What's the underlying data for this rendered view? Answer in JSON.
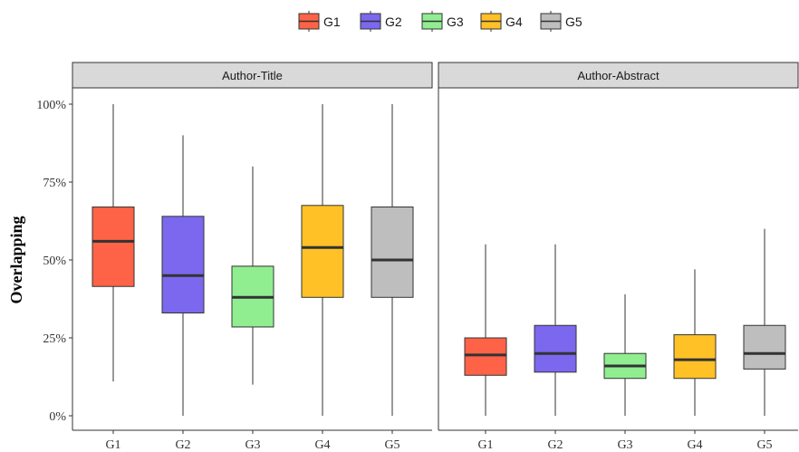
{
  "chart_data": {
    "type": "boxplot",
    "ylabel": "Overlapping",
    "xlabel": "",
    "ylim": [
      0,
      1
    ],
    "y_ticks": [
      "0%",
      "25%",
      "50%",
      "75%",
      "100%"
    ],
    "y_tick_values": [
      0,
      0.25,
      0.5,
      0.75,
      1.0
    ],
    "categories": [
      "G1",
      "G2",
      "G3",
      "G4",
      "G5"
    ],
    "colors": {
      "G1": "#FF6347",
      "G2": "#7B68EE",
      "G3": "#90EE90",
      "G4": "#FFC125",
      "G5": "#BEBEBE"
    },
    "legend": {
      "position": "top",
      "entries": [
        "G1",
        "G2",
        "G3",
        "G4",
        "G5"
      ]
    },
    "grid": false,
    "facets": [
      {
        "name": "Author-Title",
        "boxes": [
          {
            "group": "G1",
            "min": 0.11,
            "q1": 0.415,
            "median": 0.56,
            "q3": 0.67,
            "max": 1.0
          },
          {
            "group": "G2",
            "min": 0.0,
            "q1": 0.33,
            "median": 0.45,
            "q3": 0.64,
            "max": 0.9
          },
          {
            "group": "G3",
            "min": 0.1,
            "q1": 0.285,
            "median": 0.38,
            "q3": 0.48,
            "max": 0.8
          },
          {
            "group": "G4",
            "min": 0.0,
            "q1": 0.38,
            "median": 0.54,
            "q3": 0.675,
            "max": 1.0
          },
          {
            "group": "G5",
            "min": 0.0,
            "q1": 0.38,
            "median": 0.5,
            "q3": 0.67,
            "max": 1.0
          }
        ]
      },
      {
        "name": "Author-Abstract",
        "boxes": [
          {
            "group": "G1",
            "min": 0.0,
            "q1": 0.13,
            "median": 0.195,
            "q3": 0.25,
            "max": 0.55
          },
          {
            "group": "G2",
            "min": 0.0,
            "q1": 0.14,
            "median": 0.2,
            "q3": 0.29,
            "max": 0.55
          },
          {
            "group": "G3",
            "min": 0.0,
            "q1": 0.12,
            "median": 0.16,
            "q3": 0.2,
            "max": 0.39
          },
          {
            "group": "G4",
            "min": 0.0,
            "q1": 0.12,
            "median": 0.18,
            "q3": 0.26,
            "max": 0.47
          },
          {
            "group": "G5",
            "min": 0.0,
            "q1": 0.15,
            "median": 0.2,
            "q3": 0.29,
            "max": 0.6
          }
        ]
      }
    ]
  }
}
